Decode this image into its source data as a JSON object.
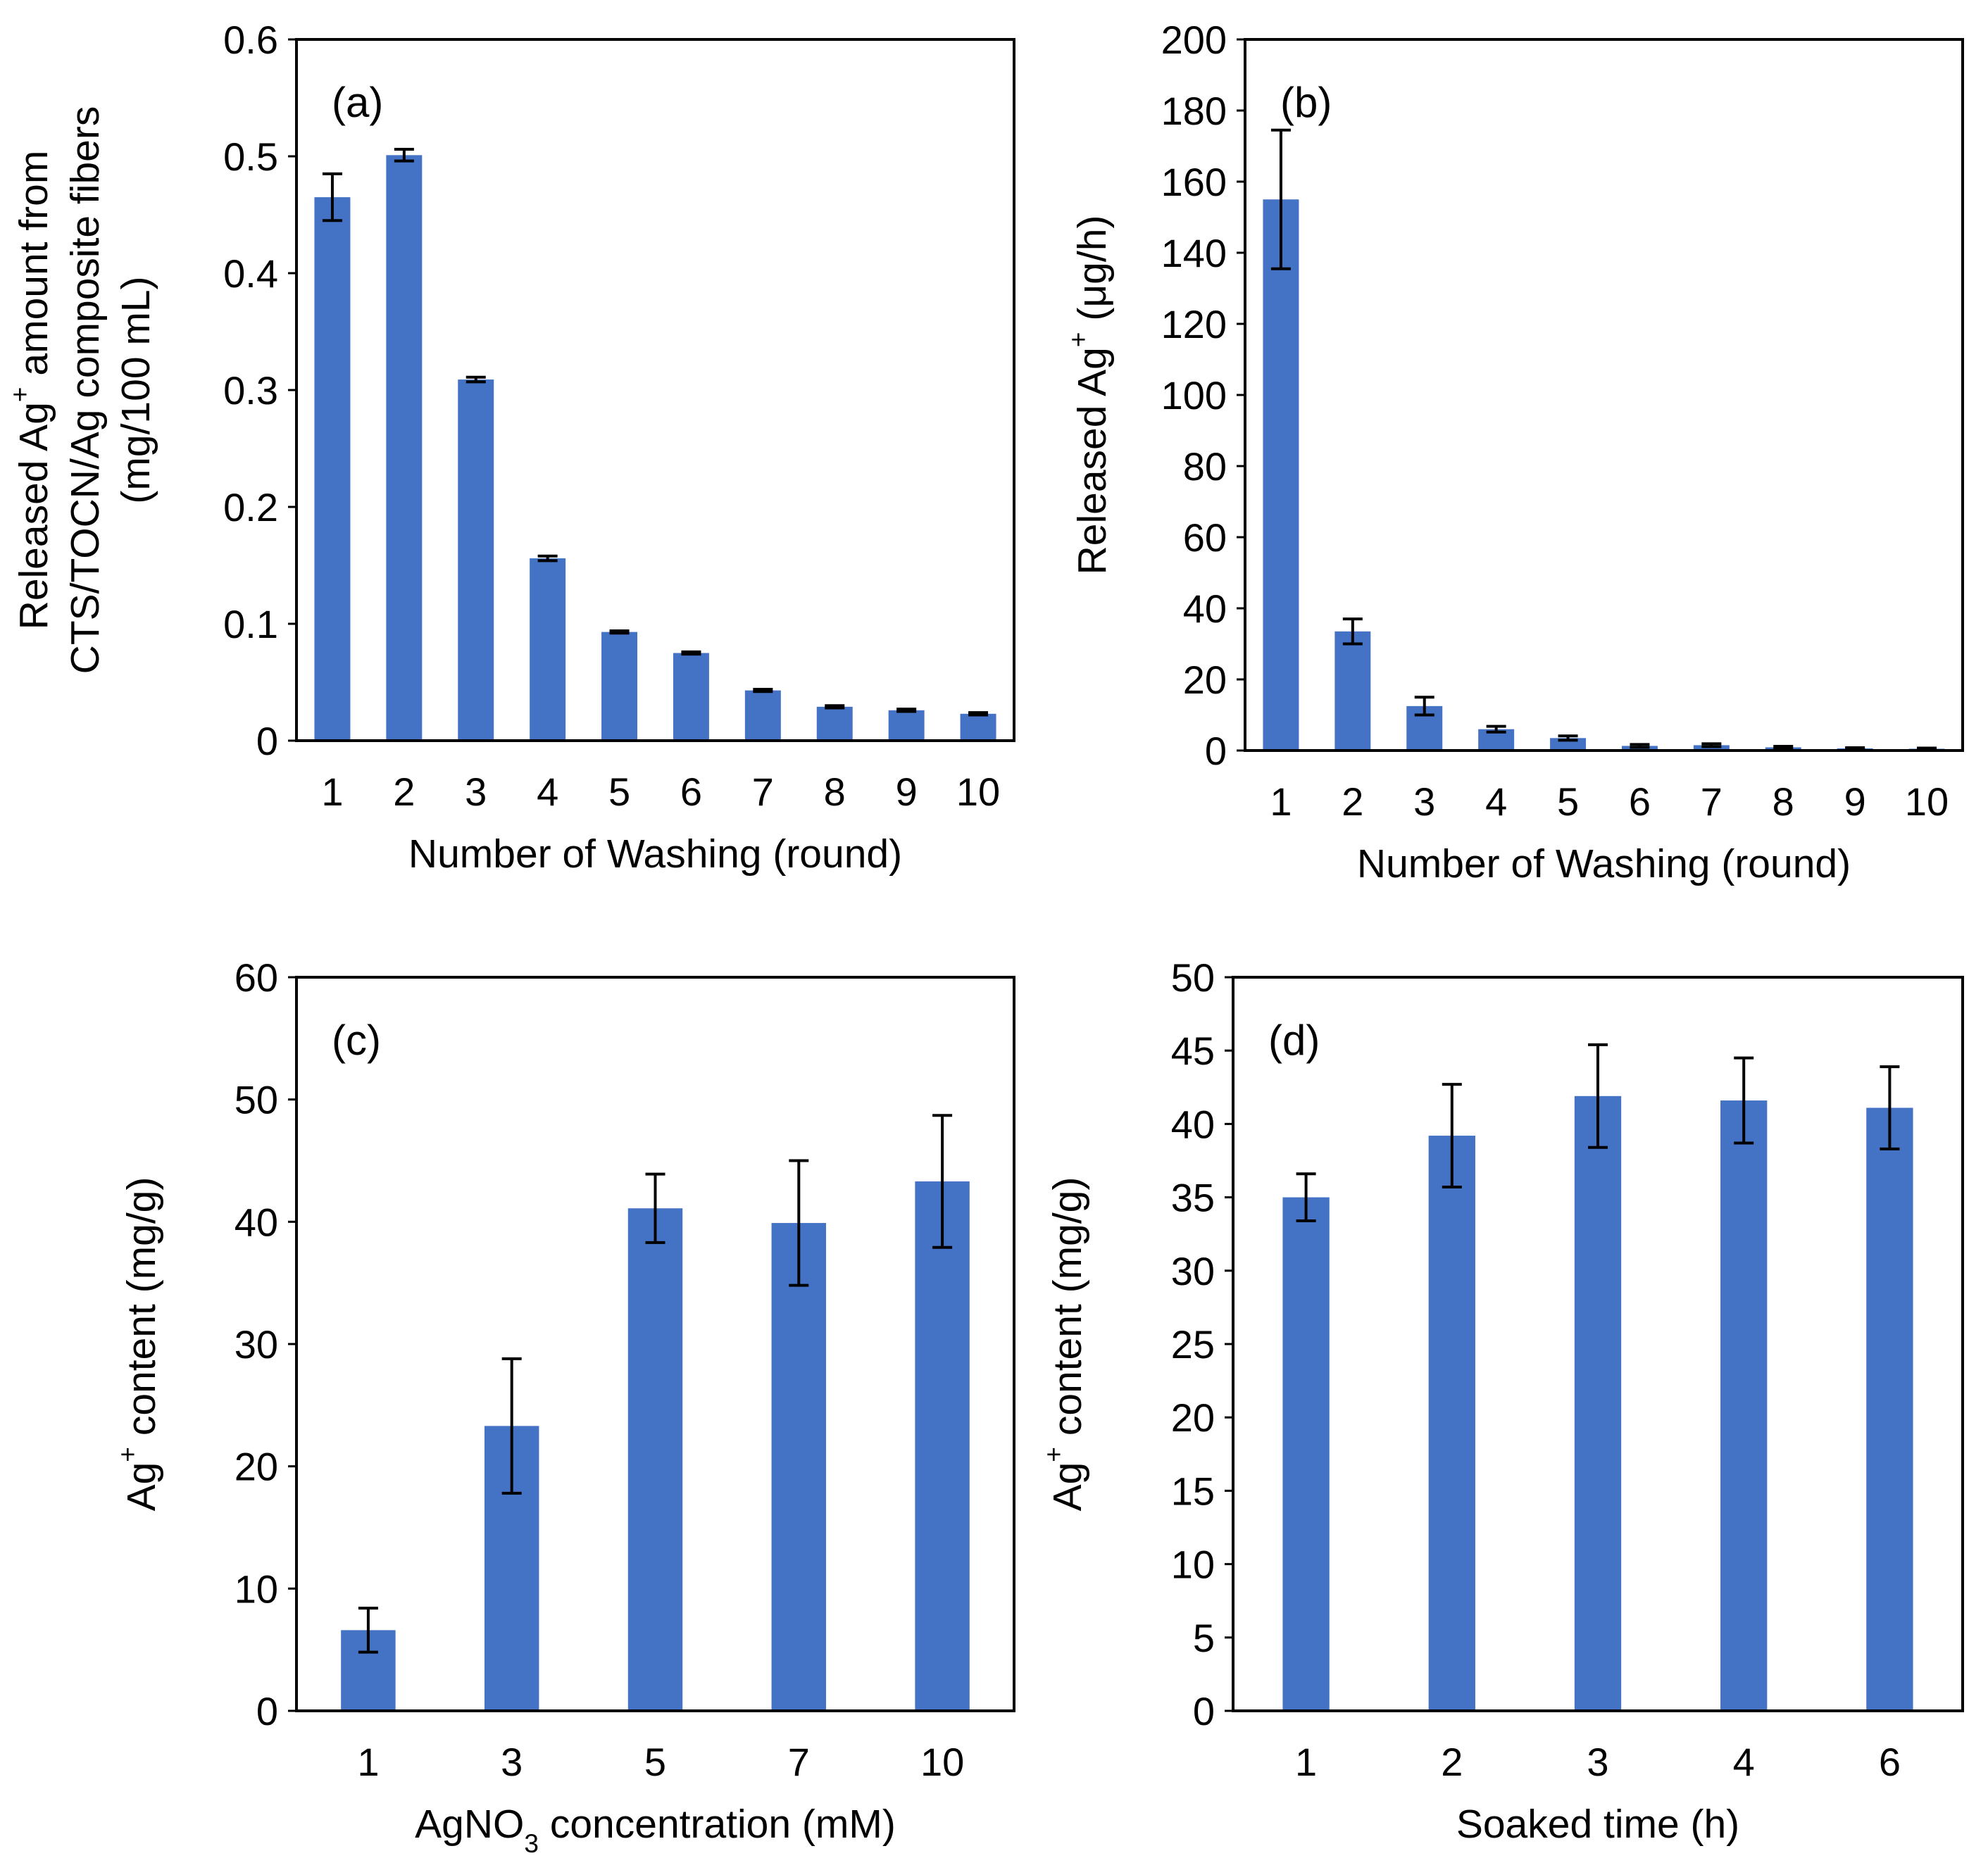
{
  "figure": {
    "bar_color": "#4472C4",
    "error_color": "#000000",
    "frame_color": "#000000"
  },
  "chart_data": [
    {
      "id": "a",
      "type": "bar",
      "panel_label": "(a)",
      "categories": [
        "1",
        "2",
        "3",
        "4",
        "5",
        "6",
        "7",
        "8",
        "9",
        "10"
      ],
      "values": [
        0.465,
        0.501,
        0.309,
        0.156,
        0.093,
        0.075,
        0.043,
        0.029,
        0.026,
        0.023
      ],
      "errors": [
        0.02,
        0.005,
        0.002,
        0.002,
        0.001,
        0.001,
        0.001,
        0.001,
        0.001,
        0.001
      ],
      "ylim": [
        0,
        0.6
      ],
      "yticks": [
        "0",
        "0.1",
        "0.2",
        "0.3",
        "0.4",
        "0.5",
        "0.6"
      ],
      "xlabel": "Number of Washing (round)",
      "ylabel_lines": [
        {
          "pre": "Released Ag",
          "sup": "+",
          "post": " amount from"
        },
        {
          "pre": "CTS/TOCN/Ag composite fibers",
          "sup": "",
          "post": ""
        },
        {
          "pre": "(mg/100 mL)",
          "sup": "",
          "post": ""
        }
      ]
    },
    {
      "id": "b",
      "type": "bar",
      "panel_label": "(b)",
      "categories": [
        "1",
        "2",
        "3",
        "4",
        "5",
        "6",
        "7",
        "8",
        "9",
        "10"
      ],
      "values": [
        155,
        33.5,
        12.5,
        6,
        3.5,
        1.3,
        1.5,
        0.9,
        0.6,
        0.5
      ],
      "errors": [
        19.5,
        3.5,
        2.5,
        0.8,
        0.6,
        0.4,
        0.4,
        0.3,
        0.2,
        0.2
      ],
      "ylim": [
        0,
        200
      ],
      "yticks": [
        "0",
        "20",
        "40",
        "60",
        "80",
        "100",
        "120",
        "140",
        "160",
        "180",
        "200"
      ],
      "xlabel": "Number of Washing (round)",
      "ylabel_lines": [
        {
          "pre": "Released Ag",
          "sup": "+",
          "post": " (μg/h)"
        }
      ]
    },
    {
      "id": "c",
      "type": "bar",
      "panel_label": "(c)",
      "categories": [
        "1",
        "3",
        "5",
        "7",
        "10"
      ],
      "values": [
        6.6,
        23.3,
        41.1,
        39.9,
        43.3
      ],
      "errors": [
        1.8,
        5.5,
        2.8,
        5.1,
        5.4
      ],
      "ylim": [
        0,
        60
      ],
      "yticks": [
        "0",
        "10",
        "20",
        "30",
        "40",
        "50",
        "60"
      ],
      "xlabel": {
        "pre": "AgNO",
        "sub": "3",
        "post": " concentration (mM)"
      },
      "ylabel_lines": [
        {
          "pre": "Ag",
          "sup": "+",
          "post": " content (mg/g)"
        }
      ]
    },
    {
      "id": "d",
      "type": "bar",
      "panel_label": "(d)",
      "categories": [
        "1",
        "2",
        "3",
        "4",
        "6"
      ],
      "values": [
        35.0,
        39.2,
        41.9,
        41.6,
        41.1
      ],
      "errors": [
        1.6,
        3.5,
        3.5,
        2.9,
        2.8
      ],
      "ylim": [
        0,
        50
      ],
      "yticks": [
        "0",
        "5",
        "10",
        "15",
        "20",
        "25",
        "30",
        "35",
        "40",
        "45",
        "50"
      ],
      "xlabel": "Soaked time (h)",
      "ylabel_lines": [
        {
          "pre": "Ag",
          "sup": "+",
          "post": " content (mg/g)"
        }
      ]
    }
  ]
}
